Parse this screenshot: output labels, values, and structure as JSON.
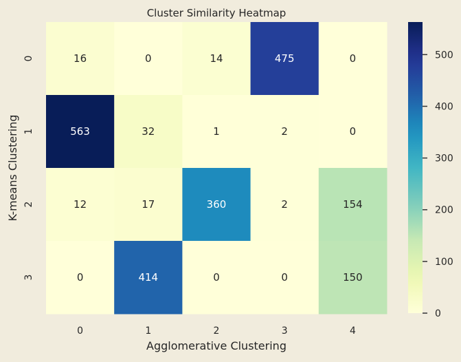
{
  "chart_data": {
    "type": "heatmap",
    "title": "Cluster Similarity Heatmap",
    "xlabel": "Agglomerative Clustering",
    "ylabel": "K-means Clustering",
    "x_categories": [
      "0",
      "1",
      "2",
      "3",
      "4"
    ],
    "y_categories": [
      "0",
      "1",
      "2",
      "3"
    ],
    "values": [
      [
        16,
        0,
        14,
        475,
        0
      ],
      [
        563,
        32,
        1,
        2,
        0
      ],
      [
        12,
        17,
        360,
        2,
        154
      ],
      [
        0,
        414,
        0,
        0,
        150
      ]
    ],
    "colormap": "YlGnBu",
    "vmin": 0,
    "vmax": 563,
    "colorbar": {
      "ticks": [
        "0",
        "100",
        "200",
        "300",
        "400",
        "500"
      ],
      "position": "right"
    },
    "annotations": true,
    "background_color": "#f1ecdd"
  }
}
